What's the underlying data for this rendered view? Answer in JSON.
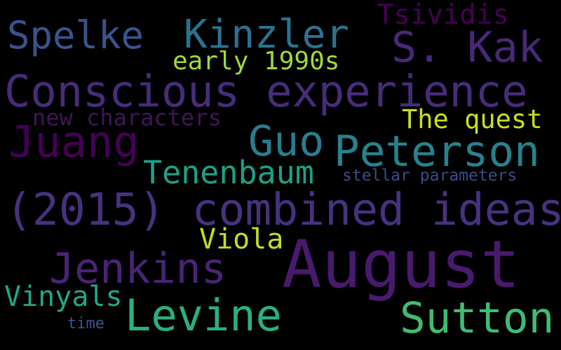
{
  "words": [
    {
      "text": "Tsividis",
      "color": "#440154",
      "rotated": false
    },
    {
      "text": "Spelke",
      "color": "#3b528b",
      "rotated": false
    },
    {
      "text": "Kinzler",
      "color": "#2c728e",
      "rotated": false
    },
    {
      "text": "S. Kak",
      "color": "#482878",
      "rotated": false
    },
    {
      "text": "early 1990s",
      "color": "#9fda3a",
      "rotated": false
    },
    {
      "text": "Conscious experience",
      "color": "#472c7a",
      "rotated": false
    },
    {
      "text": "new characters",
      "color": "#3e1656",
      "rotated": false
    },
    {
      "text": "The quest",
      "color": "#c8e020",
      "rotated": false
    },
    {
      "text": "Juang",
      "color": "#440154",
      "rotated": false
    },
    {
      "text": "Guo",
      "color": "#287d8e",
      "rotated": false
    },
    {
      "text": "Peterson",
      "color": "#26828e",
      "rotated": false
    },
    {
      "text": "Tenenbaum",
      "color": "#1fa088",
      "rotated": false
    },
    {
      "text": "stellar parameters",
      "color": "#3e4989",
      "rotated": false
    },
    {
      "text": "(2015) combined ideas",
      "color": "#46327e",
      "rotated": false
    },
    {
      "text": "Viola",
      "color": "#c2df23",
      "rotated": false
    },
    {
      "text": "August",
      "color": "#481a6c",
      "rotated": false
    },
    {
      "text": "Jenkins",
      "color": "#482475",
      "rotated": false
    },
    {
      "text": "Vinyals",
      "color": "#22a785",
      "rotated": false
    },
    {
      "text": "Levine",
      "color": "#2ab07f",
      "rotated": false
    },
    {
      "text": "Sutton",
      "color": "#3fbc73",
      "rotated": false
    },
    {
      "text": "time",
      "color": "#3b528b",
      "rotated": false
    }
  ]
}
